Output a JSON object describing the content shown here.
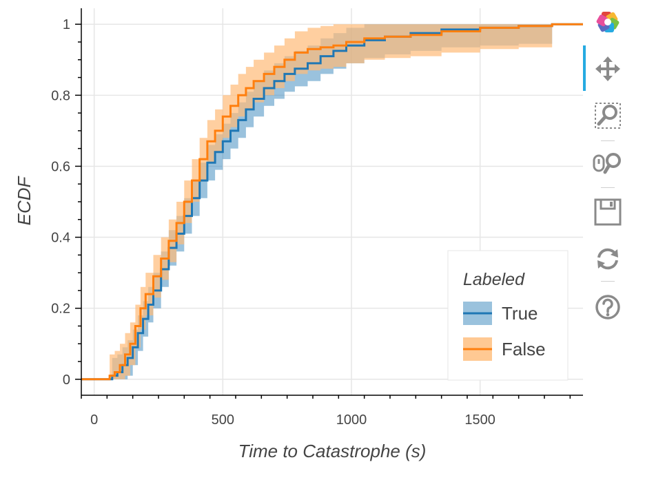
{
  "chart_data": {
    "type": "line",
    "title": "",
    "xlabel": "Time to Catastrophe (s)",
    "ylabel": "ECDF",
    "xlim": [
      -50,
      1900
    ],
    "ylim": [
      -0.045,
      1.045
    ],
    "xticks": [
      0,
      500,
      1000,
      1500
    ],
    "yticks": [
      0,
      0.2,
      0.4,
      0.6,
      0.8,
      1
    ],
    "xtick_labels": [
      "0",
      "500",
      "1000",
      "1500"
    ],
    "ytick_labels": [
      "0",
      "0.2",
      "0.4",
      "0.6",
      "0.8",
      "1"
    ],
    "grid": true,
    "legend": {
      "title": "Labeled",
      "placement": "bottom-right"
    },
    "series": [
      {
        "name": "True",
        "color": "#1f77b4",
        "band_color": "#1f77b4",
        "points": [
          [
            -50,
            0
          ],
          [
            50,
            0
          ],
          [
            70,
            0.01
          ],
          [
            90,
            0.02
          ],
          [
            110,
            0.04
          ],
          [
            130,
            0.06
          ],
          [
            150,
            0.09
          ],
          [
            170,
            0.13
          ],
          [
            190,
            0.17
          ],
          [
            210,
            0.21
          ],
          [
            230,
            0.25
          ],
          [
            260,
            0.31
          ],
          [
            290,
            0.37
          ],
          [
            320,
            0.41
          ],
          [
            350,
            0.46
          ],
          [
            380,
            0.51
          ],
          [
            410,
            0.56
          ],
          [
            440,
            0.61
          ],
          [
            470,
            0.64
          ],
          [
            500,
            0.67
          ],
          [
            530,
            0.7
          ],
          [
            560,
            0.73
          ],
          [
            590,
            0.76
          ],
          [
            620,
            0.79
          ],
          [
            660,
            0.82
          ],
          [
            700,
            0.84
          ],
          [
            740,
            0.86
          ],
          [
            780,
            0.875
          ],
          [
            830,
            0.89
          ],
          [
            880,
            0.91
          ],
          [
            930,
            0.925
          ],
          [
            980,
            0.94
          ],
          [
            1050,
            0.955
          ],
          [
            1130,
            0.965
          ],
          [
            1230,
            0.975
          ],
          [
            1350,
            0.985
          ],
          [
            1500,
            0.99
          ],
          [
            1650,
            0.995
          ],
          [
            1780,
            1.0
          ],
          [
            1900,
            1.0
          ]
        ],
        "band_half_width": 0.05
      },
      {
        "name": "False",
        "color": "#ff7f0e",
        "band_color": "#ffbb78",
        "points": [
          [
            -50,
            0
          ],
          [
            40,
            0
          ],
          [
            60,
            0.01
          ],
          [
            80,
            0.02
          ],
          [
            100,
            0.04
          ],
          [
            120,
            0.07
          ],
          [
            140,
            0.1
          ],
          [
            160,
            0.15
          ],
          [
            180,
            0.2
          ],
          [
            200,
            0.24
          ],
          [
            230,
            0.29
          ],
          [
            260,
            0.34
          ],
          [
            290,
            0.39
          ],
          [
            320,
            0.44
          ],
          [
            350,
            0.5
          ],
          [
            380,
            0.56
          ],
          [
            410,
            0.62
          ],
          [
            440,
            0.67
          ],
          [
            470,
            0.7
          ],
          [
            500,
            0.74
          ],
          [
            530,
            0.77
          ],
          [
            560,
            0.8
          ],
          [
            590,
            0.82
          ],
          [
            620,
            0.84
          ],
          [
            660,
            0.86
          ],
          [
            700,
            0.88
          ],
          [
            740,
            0.9
          ],
          [
            780,
            0.92
          ],
          [
            830,
            0.93
          ],
          [
            880,
            0.935
          ],
          [
            930,
            0.94
          ],
          [
            980,
            0.95
          ],
          [
            1050,
            0.96
          ],
          [
            1130,
            0.965
          ],
          [
            1230,
            0.97
          ],
          [
            1350,
            0.98
          ],
          [
            1500,
            0.99
          ],
          [
            1650,
            0.995
          ],
          [
            1780,
            1.0
          ],
          [
            1900,
            1.0
          ]
        ],
        "band_half_width": 0.06
      }
    ]
  },
  "toolbar": {
    "logo": "bokeh-logo-icon",
    "tools": [
      "pan-icon",
      "box-zoom-icon",
      "wheel-zoom-icon",
      "save-icon",
      "reset-icon",
      "help-icon"
    ],
    "active_color": "#26aae1"
  }
}
